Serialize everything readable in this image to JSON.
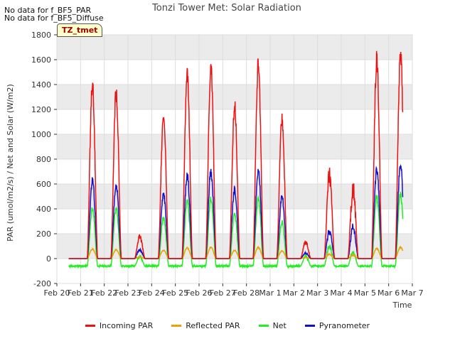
{
  "notes": [
    "No data for f_BF5_PAR",
    "No data for f_BF5_Diffuse"
  ],
  "badge": "TZ_tmet",
  "colors": {
    "incoming_par": "#ee1111",
    "reflected_par": "#f0a000",
    "net": "#22ee22",
    "pyranometer": "#1111cc",
    "plot_bg": "#ebebeb",
    "grid": "#ffffff"
  },
  "chart_data": {
    "type": "line",
    "title": "Tonzi Tower Met: Solar Radiation",
    "xlabel": "Time",
    "ylabel": "PAR (umol/m2/s) / Net and Solar (W/m2)",
    "ylim": [
      -200,
      1800
    ],
    "yticks": [
      -200,
      0,
      200,
      400,
      600,
      800,
      1000,
      1200,
      1400,
      1600,
      1800
    ],
    "xlim": [
      0,
      15
    ],
    "xticks": [
      0,
      1,
      2,
      3,
      4,
      5,
      6,
      7,
      8,
      9,
      10,
      11,
      12,
      13,
      14,
      15
    ],
    "xtick_labels": [
      "Feb 20",
      "Feb 21",
      "Feb 22",
      "Feb 23",
      "Feb 24",
      "Feb 25",
      "Feb 26",
      "Feb 27",
      "Feb 28",
      "Mar 1",
      "Mar 2",
      "Mar 3",
      "Mar 4",
      "Mar 5",
      "Mar 6",
      "Mar 7"
    ],
    "grid": true,
    "legend_position": "bottom",
    "x_units": "days since Feb 20",
    "series": [
      {
        "name": "Incoming PAR",
        "daily_peak_days": [
          1,
          2,
          3,
          4,
          5,
          6,
          7,
          8,
          9,
          10,
          11,
          12,
          13,
          14
        ],
        "daily_peak_values": [
          1470,
          1400,
          200,
          1210,
          1560,
          1610,
          1290,
          1630,
          1170,
          150,
          750,
          630,
          1680,
          1750
        ]
      },
      {
        "name": "Reflected PAR",
        "daily_peak_days": [
          1,
          2,
          3,
          4,
          5,
          6,
          7,
          8,
          9,
          10,
          11,
          12,
          13,
          14
        ],
        "daily_peak_values": [
          80,
          75,
          15,
          70,
          90,
          95,
          70,
          95,
          65,
          10,
          40,
          30,
          85,
          95
        ]
      },
      {
        "name": "Net",
        "daily_peak_days": [
          1,
          2,
          3,
          4,
          5,
          6,
          7,
          8,
          9,
          10,
          11,
          12,
          13,
          14
        ],
        "daily_peak_values": [
          420,
          420,
          30,
          350,
          490,
          500,
          380,
          510,
          310,
          30,
          120,
          70,
          520,
          550
        ],
        "night_value": -60
      },
      {
        "name": "Pyranometer",
        "daily_peak_days": [
          1,
          2,
          3,
          4,
          5,
          6,
          7,
          8,
          9,
          10,
          11,
          12,
          13,
          14
        ],
        "daily_peak_values": [
          660,
          620,
          80,
          550,
          700,
          740,
          590,
          750,
          520,
          50,
          250,
          290,
          750,
          790
        ]
      }
    ]
  }
}
